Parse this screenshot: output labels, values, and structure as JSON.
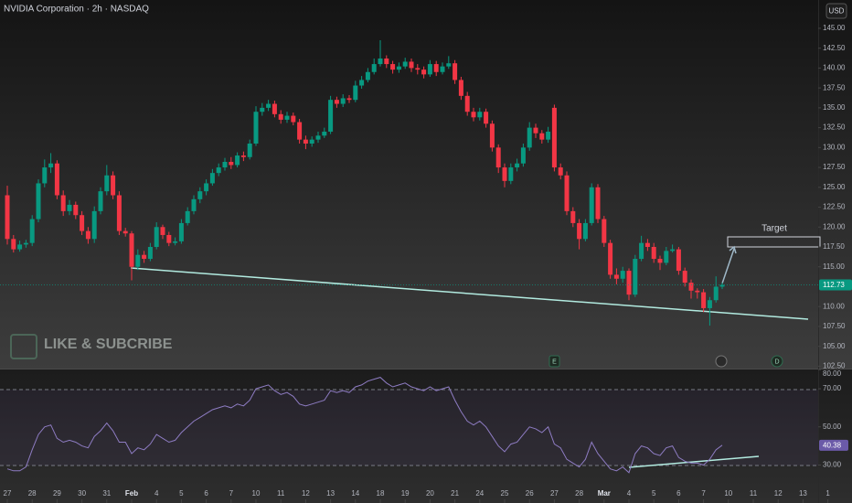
{
  "chart_data": [
    {
      "type": "candlestick",
      "title": "NVIDIA Corporation · 2h · NASDAQ",
      "currency": "USD",
      "watermark": "LIKE & SUBCRIBE",
      "annotations": [
        "Target"
      ],
      "events": [
        "E",
        "D"
      ],
      "up_color": "#089981",
      "down_color": "#f23645",
      "open": [
        124.0,
        118.5,
        117.2,
        117.8,
        118.0,
        121.0,
        125.5,
        127.5,
        128.0,
        124.0,
        122.0,
        122.8,
        121.5,
        119.5,
        118.5,
        122.0,
        124.5,
        126.5,
        124.0,
        119.5,
        119.2,
        115.0,
        116.5,
        116.0,
        117.5,
        120.0,
        119.0,
        118.0,
        118.2,
        120.5,
        122.0,
        123.5,
        124.5,
        125.5,
        126.8,
        127.5,
        128.2,
        127.8,
        129.0,
        128.8,
        130.5,
        134.5,
        135.0,
        135.5,
        134.2,
        133.5,
        134.0,
        133.2,
        131.0,
        130.5,
        131.0,
        131.5,
        132.0,
        136.0,
        135.5,
        136.2,
        136.0,
        137.8,
        138.5,
        139.5,
        140.5,
        141.2,
        140.5,
        139.8,
        140.2,
        140.8,
        140.0,
        139.8,
        139.2,
        140.5,
        139.5,
        140.2,
        140.6,
        138.5,
        136.5,
        134.5,
        133.8,
        134.5,
        133.0,
        130.0,
        127.5,
        125.8,
        127.5,
        128.0,
        130.0,
        132.5,
        131.8,
        131.0,
        135.0,
        127.5,
        126.5,
        122.0,
        120.5,
        118.5,
        120.5,
        125.0,
        121.0,
        118.0,
        114.0,
        113.5,
        114.5,
        111.5,
        116.0,
        118.0,
        117.5,
        116.0,
        115.5,
        117.0,
        117.2,
        114.5,
        113.0,
        112.0,
        111.8,
        109.8,
        110.8,
        112.5
      ],
      "high": [
        125.2,
        119.0,
        118.3,
        118.4,
        121.5,
        126.0,
        128.5,
        129.3,
        128.4,
        124.6,
        123.4,
        123.2,
        122.0,
        120.0,
        122.6,
        125.0,
        127.8,
        127.0,
        124.5,
        119.9,
        119.5,
        117.2,
        117.0,
        118.0,
        120.6,
        120.3,
        119.4,
        118.7,
        121.0,
        122.5,
        124.0,
        125.0,
        126.0,
        127.3,
        128.0,
        128.7,
        128.8,
        129.4,
        129.5,
        131.0,
        135.2,
        135.6,
        136.0,
        135.9,
        134.7,
        134.5,
        134.4,
        133.6,
        131.5,
        131.4,
        132.0,
        132.5,
        136.5,
        136.4,
        136.7,
        136.6,
        138.4,
        139.0,
        140.0,
        141.2,
        143.5,
        141.6,
        140.9,
        140.7,
        141.3,
        141.2,
        140.5,
        140.2,
        141.0,
        140.9,
        140.7,
        141.5,
        141.0,
        138.9,
        137.0,
        135.0,
        135.0,
        134.9,
        133.4,
        130.4,
        128.0,
        128.0,
        128.6,
        130.5,
        133.2,
        133.0,
        132.2,
        132.6,
        135.4,
        128.0,
        127.0,
        122.5,
        121.0,
        121.0,
        125.5,
        125.4,
        121.4,
        118.4,
        114.8,
        115.0,
        114.8,
        116.5,
        118.9,
        118.5,
        118.0,
        116.4,
        117.5,
        117.8,
        117.5,
        114.9,
        113.4,
        112.3,
        112.2,
        111.2,
        113.8,
        113.0
      ],
      "low": [
        117.8,
        116.8,
        116.9,
        117.4,
        117.6,
        120.6,
        125.0,
        126.8,
        123.5,
        121.4,
        121.5,
        121.0,
        119.0,
        117.9,
        118.0,
        121.6,
        124.0,
        123.5,
        119.0,
        118.8,
        113.3,
        114.6,
        115.5,
        115.7,
        117.2,
        118.5,
        117.6,
        117.7,
        117.9,
        120.2,
        121.6,
        123.0,
        124.0,
        125.2,
        126.4,
        127.1,
        127.3,
        127.5,
        128.3,
        128.5,
        130.2,
        134.0,
        134.6,
        133.8,
        133.0,
        133.1,
        132.8,
        130.5,
        129.8,
        130.1,
        130.6,
        131.2,
        131.7,
        135.0,
        135.1,
        135.6,
        135.7,
        137.4,
        138.2,
        139.2,
        140.2,
        140.0,
        139.3,
        139.4,
        139.9,
        139.5,
        139.2,
        138.7,
        138.9,
        139.0,
        139.2,
        139.9,
        138.0,
        136.0,
        134.0,
        133.3,
        133.4,
        132.5,
        129.5,
        126.8,
        125.0,
        125.4,
        127.0,
        127.6,
        129.6,
        131.2,
        130.5,
        130.6,
        127.0,
        126.0,
        121.5,
        120.0,
        117.2,
        118.2,
        120.2,
        120.5,
        117.5,
        113.5,
        112.8,
        113.0,
        110.8,
        111.2,
        115.7,
        117.0,
        115.5,
        114.6,
        115.2,
        116.8,
        114.0,
        112.5,
        111.0,
        111.0,
        109.3,
        107.6,
        110.5,
        112.2
      ],
      "close": [
        118.5,
        117.2,
        117.8,
        118.0,
        121.0,
        125.5,
        127.5,
        128.0,
        124.0,
        122.0,
        122.8,
        121.5,
        119.5,
        118.5,
        122.0,
        124.5,
        126.5,
        124.0,
        119.5,
        119.2,
        115.0,
        116.5,
        116.0,
        117.5,
        120.0,
        119.0,
        118.0,
        118.2,
        120.5,
        122.0,
        123.5,
        124.5,
        125.5,
        126.8,
        127.5,
        128.2,
        127.8,
        129.0,
        128.8,
        130.5,
        134.5,
        135.0,
        135.5,
        134.2,
        133.5,
        134.0,
        133.2,
        131.0,
        130.5,
        131.0,
        131.5,
        132.0,
        136.0,
        135.5,
        136.2,
        136.0,
        137.8,
        138.5,
        139.5,
        140.5,
        141.2,
        140.5,
        139.8,
        140.2,
        140.8,
        140.0,
        139.8,
        139.2,
        140.5,
        139.5,
        140.2,
        140.6,
        138.5,
        136.5,
        134.5,
        133.8,
        134.5,
        133.0,
        130.0,
        127.5,
        125.8,
        127.5,
        128.0,
        130.0,
        132.5,
        131.8,
        131.0,
        132.0,
        127.5,
        126.5,
        122.0,
        120.5,
        118.5,
        120.5,
        125.0,
        121.0,
        118.0,
        114.0,
        113.5,
        114.5,
        111.5,
        116.0,
        118.0,
        117.5,
        116.0,
        115.5,
        117.0,
        117.2,
        114.5,
        113.0,
        112.0,
        111.8,
        109.8,
        110.8,
        112.5,
        112.73
      ],
      "xlim": [
        -1.176,
        130.44
      ],
      "ylim": [
        102.2,
        148.56
      ],
      "yticks": [
        {
          "value": 145,
          "label": "145.00"
        },
        {
          "value": 142.5,
          "label": "142.50"
        },
        {
          "value": 140,
          "label": "140.00"
        },
        {
          "value": 137.5,
          "label": "137.50"
        },
        {
          "value": 135,
          "label": "135.00"
        },
        {
          "value": 132.5,
          "label": "132.50"
        },
        {
          "value": 130,
          "label": "130.00"
        },
        {
          "value": 127.5,
          "label": "127.50"
        },
        {
          "value": 125,
          "label": "125.00"
        },
        {
          "value": 122.5,
          "label": "122.50"
        },
        {
          "value": 120,
          "label": "120.00"
        },
        {
          "value": 117.5,
          "label": "117.50"
        },
        {
          "value": 115,
          "label": "115.00"
        },
        {
          "value": 110,
          "label": "110.00"
        },
        {
          "value": 107.5,
          "label": "107.50"
        },
        {
          "value": 105,
          "label": "105.00"
        },
        {
          "value": 102.5,
          "label": "102.50"
        }
      ],
      "xticks": [
        {
          "value": 0,
          "label": "27"
        },
        {
          "value": 4,
          "label": "28"
        },
        {
          "value": 8,
          "label": "29"
        },
        {
          "value": 12,
          "label": "30"
        },
        {
          "value": 16,
          "label": "31"
        },
        {
          "value": 20,
          "label": "Feb"
        },
        {
          "value": 24,
          "label": "4"
        },
        {
          "value": 28,
          "label": "5"
        },
        {
          "value": 32,
          "label": "6"
        },
        {
          "value": 36,
          "label": "7"
        },
        {
          "value": 40,
          "label": "10"
        },
        {
          "value": 44,
          "label": "11"
        },
        {
          "value": 48,
          "label": "12"
        },
        {
          "value": 52,
          "label": "13"
        },
        {
          "value": 56,
          "label": "14"
        },
        {
          "value": 60,
          "label": "18"
        },
        {
          "value": 64,
          "label": "19"
        },
        {
          "value": 68,
          "label": "20"
        },
        {
          "value": 72,
          "label": "21"
        },
        {
          "value": 76,
          "label": "24"
        },
        {
          "value": 80,
          "label": "25"
        },
        {
          "value": 84,
          "label": "26"
        },
        {
          "value": 88,
          "label": "27"
        },
        {
          "value": 92,
          "label": "28"
        },
        {
          "value": 96,
          "label": "Mar"
        },
        {
          "value": 100,
          "label": "4"
        },
        {
          "value": 104,
          "label": "5"
        },
        {
          "value": 108,
          "label": "6"
        },
        {
          "value": 112,
          "label": "7"
        },
        {
          "value": 116,
          "label": "10"
        },
        {
          "value": 120,
          "label": "11"
        },
        {
          "value": 124,
          "label": "12"
        },
        {
          "value": 128,
          "label": "13"
        },
        {
          "value": 132,
          "label": "1"
        }
      ]
    },
    {
      "type": "line",
      "color": "#8e7cc3",
      "values": [
        28,
        27,
        27,
        29,
        38,
        46,
        50,
        51,
        44,
        42,
        43,
        42,
        40,
        39,
        45,
        48,
        52,
        48,
        42,
        42,
        36,
        39,
        38,
        41,
        46,
        44,
        42,
        43,
        47,
        50,
        53,
        55,
        57,
        59,
        60,
        61,
        60,
        62,
        61,
        64,
        70,
        71,
        72,
        69,
        67,
        68,
        66,
        62,
        61,
        62,
        63,
        64,
        69,
        68,
        69,
        68,
        71,
        72,
        74,
        75,
        76,
        73,
        71,
        72,
        73,
        71,
        70,
        69,
        71,
        69,
        70,
        71,
        64,
        58,
        53,
        51,
        53,
        50,
        45,
        40,
        37,
        41,
        42,
        46,
        50,
        49,
        47,
        50,
        41,
        39,
        33,
        31,
        29,
        33,
        42,
        36,
        32,
        28,
        27,
        29,
        26,
        36,
        40,
        39,
        36,
        35,
        39,
        40,
        34,
        32,
        31,
        31,
        30,
        33,
        38,
        40.38
      ],
      "ylim": [
        10.1,
        80.1
      ],
      "yticks": [
        {
          "value": 80,
          "label": "80.00"
        },
        {
          "value": 70,
          "label": "70.00"
        },
        {
          "value": 50,
          "label": "50.00"
        },
        {
          "value": 30,
          "label": "30.00"
        }
      ]
    }
  ]
}
